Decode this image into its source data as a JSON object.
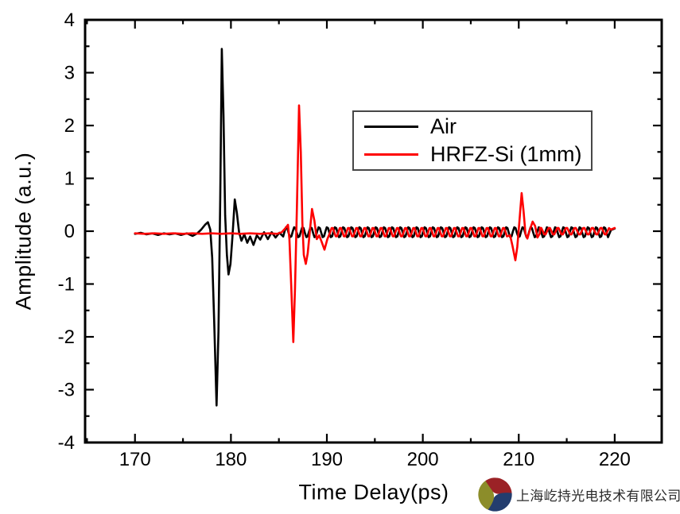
{
  "figure": {
    "kind": "terahertz time-domain waveform plot"
  },
  "legend": {
    "border_color": "#474747",
    "items": [
      {
        "label": "Air",
        "color": "#000000"
      },
      {
        "label": "HRFZ-Si (1mm)",
        "color": "#fe0000"
      }
    ]
  },
  "footer": {
    "company_name": "上海屹持光电技术有限公司",
    "logo_name": "pinwheel-logo",
    "logo_colors": {
      "red": "#9b2226",
      "olive": "#8c8d2a",
      "navy": "#233d6e"
    }
  },
  "chart_data": {
    "type": "line",
    "title": "",
    "xlabel": "Time Delay(ps)",
    "ylabel": "Amplitude (a.u.)",
    "xlim": [
      164.8,
      224.9
    ],
    "ylim": [
      -4,
      4
    ],
    "x_ticks": [
      170,
      180,
      190,
      200,
      210,
      220
    ],
    "x_minor_step": 5,
    "y_ticks": [
      -4,
      -3,
      -2,
      -1,
      0,
      1,
      2,
      3,
      4
    ],
    "y_minor_step": 0.5,
    "grid": false,
    "legend_position": "upper right inside",
    "frame": {
      "color": "#000000",
      "ticks": "inside all sides"
    },
    "series": [
      {
        "name": "Air",
        "color": "#000000",
        "width": 2.6,
        "segments": [
          {
            "type": "points",
            "points": [
              [
                170,
                -0.05
              ],
              [
                170.6,
                -0.03
              ],
              [
                171.2,
                -0.06
              ],
              [
                171.8,
                -0.04
              ],
              [
                172.4,
                -0.07
              ],
              [
                173,
                -0.04
              ],
              [
                173.6,
                -0.06
              ],
              [
                174.2,
                -0.04
              ],
              [
                174.8,
                -0.07
              ],
              [
                175.4,
                -0.04
              ],
              [
                176,
                -0.09
              ],
              [
                176.5,
                -0.04
              ],
              [
                176.9,
                0.03
              ],
              [
                177.3,
                0.12
              ],
              [
                177.6,
                0.17
              ],
              [
                177.85,
                0.03
              ],
              [
                178.05,
                -0.5
              ],
              [
                178.25,
                -1.7
              ],
              [
                178.5,
                -3.3
              ],
              [
                178.7,
                -1.9
              ],
              [
                178.88,
                0.6
              ],
              [
                179.05,
                3.45
              ],
              [
                179.22,
                2.2
              ],
              [
                179.4,
                0.3
              ],
              [
                179.58,
                -0.45
              ],
              [
                179.75,
                -0.82
              ],
              [
                179.95,
                -0.62
              ],
              [
                180.15,
                -0.12
              ],
              [
                180.4,
                0.6
              ],
              [
                180.62,
                0.35
              ],
              [
                180.85,
                -0.02
              ],
              [
                181.1,
                -0.18
              ],
              [
                181.4,
                -0.06
              ],
              [
                181.7,
                -0.22
              ],
              [
                182,
                -0.1
              ],
              [
                182.35,
                -0.26
              ],
              [
                182.7,
                -0.08
              ],
              [
                183.05,
                -0.16
              ],
              [
                183.45,
                -0.02
              ],
              [
                183.85,
                -0.15
              ],
              [
                184.25,
                -0.02
              ],
              [
                184.65,
                -0.12
              ],
              [
                185.05,
                -0.03
              ],
              [
                185.45,
                -0.1
              ]
            ]
          },
          {
            "type": "ripple",
            "t0": 185.45,
            "t1": 219.4,
            "bias": -0.02,
            "amplitude": 0.1,
            "period": 0.85,
            "phase": -0.9
          },
          {
            "type": "points",
            "points": [
              [
                219.6,
                0.02
              ],
              [
                220,
                0.05
              ]
            ]
          }
        ]
      },
      {
        "name": "HRFZ-Si (1mm)",
        "color": "#fe0000",
        "width": 2.6,
        "segments": [
          {
            "type": "points",
            "points": [
              [
                170,
                -0.04
              ],
              [
                171,
                -0.05
              ],
              [
                172,
                -0.04
              ],
              [
                173,
                -0.05
              ],
              [
                174,
                -0.04
              ],
              [
                175,
                -0.05
              ],
              [
                176,
                -0.04
              ],
              [
                177,
                -0.05
              ],
              [
                178,
                -0.04
              ],
              [
                179,
                -0.05
              ],
              [
                180,
                -0.04
              ],
              [
                181,
                -0.05
              ],
              [
                182,
                -0.04
              ],
              [
                183,
                -0.05
              ],
              [
                184,
                -0.04
              ],
              [
                184.8,
                -0.05
              ],
              [
                185.3,
                -0.02
              ],
              [
                185.7,
                0.06
              ],
              [
                185.95,
                0.12
              ],
              [
                186.1,
                -0.15
              ],
              [
                186.28,
                -1.0
              ],
              [
                186.5,
                -2.1
              ],
              [
                186.68,
                -1.1
              ],
              [
                186.88,
                0.5
              ],
              [
                187.1,
                2.38
              ],
              [
                187.28,
                1.5
              ],
              [
                187.45,
                0.15
              ],
              [
                187.6,
                -0.45
              ],
              [
                187.8,
                -0.62
              ],
              [
                188,
                -0.42
              ],
              [
                188.2,
                -0.05
              ],
              [
                188.45,
                0.42
              ],
              [
                188.7,
                0.2
              ],
              [
                188.95,
                -0.15
              ],
              [
                189.2,
                -0.08
              ],
              [
                189.45,
                -0.2
              ],
              [
                189.75,
                -0.35
              ],
              [
                190.05,
                -0.15
              ],
              [
                190.35,
                -0.02
              ]
            ]
          },
          {
            "type": "ripple",
            "t0": 190.35,
            "t1": 208.9,
            "bias": -0.02,
            "amplitude": 0.09,
            "period": 0.85,
            "phase": 0
          },
          {
            "type": "points",
            "points": [
              [
                209.1,
                -0.08
              ],
              [
                209.35,
                -0.28
              ],
              [
                209.65,
                -0.55
              ],
              [
                209.85,
                -0.3
              ],
              [
                210.05,
                0.15
              ],
              [
                210.3,
                0.72
              ],
              [
                210.5,
                0.38
              ],
              [
                210.7,
                -0.05
              ],
              [
                210.9,
                -0.14
              ],
              [
                211.15,
                0.02
              ],
              [
                211.45,
                0.18
              ],
              [
                211.7,
                0.1
              ],
              [
                211.95,
                -0.12
              ],
              [
                212.2,
                -0.04
              ]
            ]
          },
          {
            "type": "ripple",
            "t0": 212.2,
            "t1": 219.4,
            "bias": 0,
            "amplitude": 0.07,
            "period": 0.9,
            "phase": 1.0
          },
          {
            "type": "points",
            "points": [
              [
                219.6,
                0.03
              ],
              [
                220,
                0.06
              ]
            ]
          }
        ]
      }
    ]
  }
}
